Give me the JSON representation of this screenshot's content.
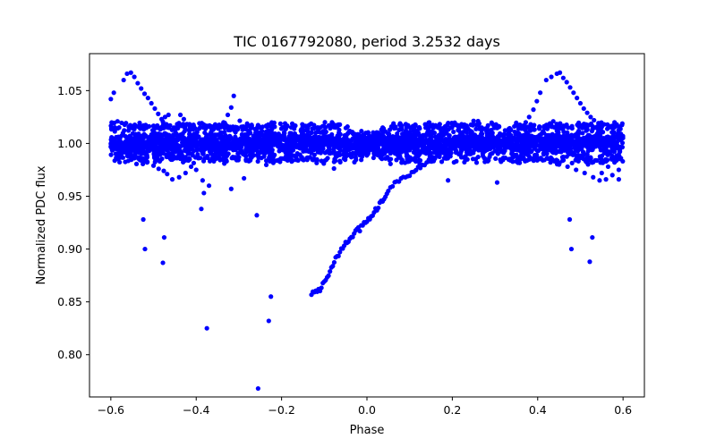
{
  "chart_data": {
    "type": "scatter",
    "title": "TIC 0167792080, period 3.2532 days",
    "xlabel": "Phase",
    "ylabel": "Normalized PDC flux",
    "xlim": [
      -0.65,
      0.65
    ],
    "ylim": [
      0.76,
      1.085
    ],
    "xticks": [
      -0.6,
      -0.4,
      -0.2,
      0.0,
      0.2,
      0.4,
      0.6
    ],
    "xtick_labels": [
      "−0.6",
      "−0.4",
      "−0.2",
      "0.0",
      "0.2",
      "0.4",
      "0.6"
    ],
    "yticks": [
      0.8,
      0.85,
      0.9,
      0.95,
      1.0,
      1.05
    ],
    "ytick_labels": [
      "0.80",
      "0.85",
      "0.90",
      "0.95",
      "1.00",
      "1.05"
    ],
    "grid": false,
    "legend": "none",
    "marker_color": "#0000ff",
    "series": [
      {
        "points": [
          [
            -0.6,
            1.042
          ],
          [
            -0.593,
            1.048
          ],
          [
            -0.57,
            1.06
          ],
          [
            -0.562,
            1.066
          ],
          [
            -0.553,
            1.067
          ],
          [
            -0.545,
            1.063
          ],
          [
            -0.537,
            1.057
          ],
          [
            -0.529,
            1.052
          ],
          [
            -0.521,
            1.047
          ],
          [
            -0.513,
            1.043
          ],
          [
            -0.505,
            1.038
          ],
          [
            -0.497,
            1.033
          ],
          [
            -0.489,
            1.028
          ],
          [
            -0.481,
            1.023
          ],
          [
            -0.473,
            1.025
          ],
          [
            -0.465,
            1.027
          ],
          [
            -0.437,
            1.027
          ],
          [
            -0.429,
            1.023
          ],
          [
            -0.421,
            1.018
          ],
          [
            -0.413,
            1.013
          ],
          [
            -0.405,
            1.009
          ],
          [
            -0.397,
            1.006
          ],
          [
            -0.385,
            1.002
          ],
          [
            -0.371,
            1.004
          ],
          [
            -0.36,
            1.008
          ],
          [
            -0.348,
            1.014
          ],
          [
            -0.336,
            1.02
          ],
          [
            -0.326,
            1.027
          ],
          [
            -0.318,
            1.034
          ],
          [
            -0.312,
            1.045
          ],
          [
            0.398,
            1.04
          ],
          [
            0.406,
            1.048
          ],
          [
            0.42,
            1.06
          ],
          [
            0.432,
            1.063
          ],
          [
            0.445,
            1.066
          ],
          [
            0.452,
            1.067
          ],
          [
            0.46,
            1.062
          ],
          [
            0.468,
            1.058
          ],
          [
            0.476,
            1.053
          ],
          [
            0.484,
            1.048
          ],
          [
            0.492,
            1.043
          ],
          [
            0.5,
            1.038
          ],
          [
            0.508,
            1.033
          ],
          [
            0.516,
            1.029
          ],
          [
            0.524,
            1.025
          ],
          [
            0.532,
            1.022
          ],
          [
            0.352,
            1.01
          ],
          [
            0.362,
            1.014
          ],
          [
            0.372,
            1.02
          ],
          [
            0.38,
            1.025
          ],
          [
            0.39,
            1.032
          ],
          [
            -0.56,
            0.988
          ],
          [
            -0.545,
            0.986
          ],
          [
            -0.53,
            0.984
          ],
          [
            -0.515,
            0.982
          ],
          [
            -0.5,
            0.979
          ],
          [
            -0.488,
            0.976
          ],
          [
            -0.476,
            0.974
          ],
          [
            -0.468,
            0.971
          ],
          [
            -0.456,
            0.966
          ],
          [
            -0.44,
            0.968
          ],
          [
            -0.425,
            0.972
          ],
          [
            -0.412,
            0.978
          ],
          [
            -0.4,
            0.975
          ],
          [
            -0.385,
            0.965
          ],
          [
            -0.37,
            0.96
          ],
          [
            0.412,
            0.984
          ],
          [
            0.43,
            0.982
          ],
          [
            0.45,
            0.98
          ],
          [
            0.47,
            0.978
          ],
          [
            0.49,
            0.975
          ],
          [
            0.51,
            0.972
          ],
          [
            0.53,
            0.968
          ],
          [
            0.55,
            0.972
          ],
          [
            0.565,
            0.978
          ],
          [
            0.58,
            0.982
          ],
          [
            0.595,
            0.986
          ],
          [
            0.545,
            0.965
          ],
          [
            0.56,
            0.966
          ],
          [
            0.575,
            0.97
          ],
          [
            0.59,
            0.975
          ],
          [
            -0.51,
            0.993
          ],
          [
            -0.49,
            0.991
          ],
          [
            -0.47,
            0.989
          ],
          [
            -0.45,
            0.987
          ],
          [
            0.455,
            0.992
          ],
          [
            0.475,
            0.99
          ],
          [
            0.495,
            0.988
          ],
          [
            0.515,
            0.986
          ],
          [
            0.535,
            0.984
          ],
          [
            0.56,
            0.983
          ],
          [
            -0.524,
            0.928
          ],
          [
            -0.52,
            0.9
          ],
          [
            -0.475,
            0.911
          ],
          [
            -0.478,
            0.887
          ],
          [
            -0.388,
            0.938
          ],
          [
            -0.382,
            0.953
          ],
          [
            -0.375,
            0.825
          ],
          [
            -0.318,
            0.957
          ],
          [
            -0.288,
            0.967
          ],
          [
            -0.258,
            0.932
          ],
          [
            -0.255,
            0.768
          ],
          [
            -0.23,
            0.832
          ],
          [
            -0.225,
            0.855
          ],
          [
            0.19,
            0.965
          ],
          [
            0.305,
            0.963
          ],
          [
            0.475,
            0.928
          ],
          [
            0.479,
            0.9
          ],
          [
            0.522,
            0.888
          ],
          [
            0.528,
            0.911
          ],
          [
            0.59,
            0.966
          ]
        ],
        "bands": [
          {
            "center": 1.0,
            "spread": 0.004,
            "count": 1400,
            "x": [
              -0.6,
              0.6
            ]
          },
          {
            "center": 1.006,
            "spread": 0.004,
            "count": 700,
            "x": [
              -0.6,
              0.6
            ]
          },
          {
            "center": 0.994,
            "spread": 0.004,
            "count": 700,
            "x": [
              -0.6,
              0.6
            ]
          },
          {
            "center": 1.016,
            "spread": 0.002,
            "count": 420,
            "x": [
              -0.6,
              0.6
            ]
          },
          {
            "center": 0.985,
            "spread": 0.002,
            "count": 320,
            "x": [
              -0.6,
              0.6
            ]
          }
        ],
        "dip_curve": {
          "x": [
            -0.13,
            -0.11,
            -0.09,
            -0.07,
            -0.05,
            -0.03,
            -0.01,
            0.01,
            0.03,
            0.05,
            0.08,
            0.11,
            0.14,
            0.17,
            0.2
          ],
          "y": [
            0.858,
            0.862,
            0.875,
            0.893,
            0.905,
            0.915,
            0.922,
            0.93,
            0.942,
            0.955,
            0.966,
            0.974,
            0.982,
            0.988,
            0.995
          ]
        }
      }
    ]
  }
}
